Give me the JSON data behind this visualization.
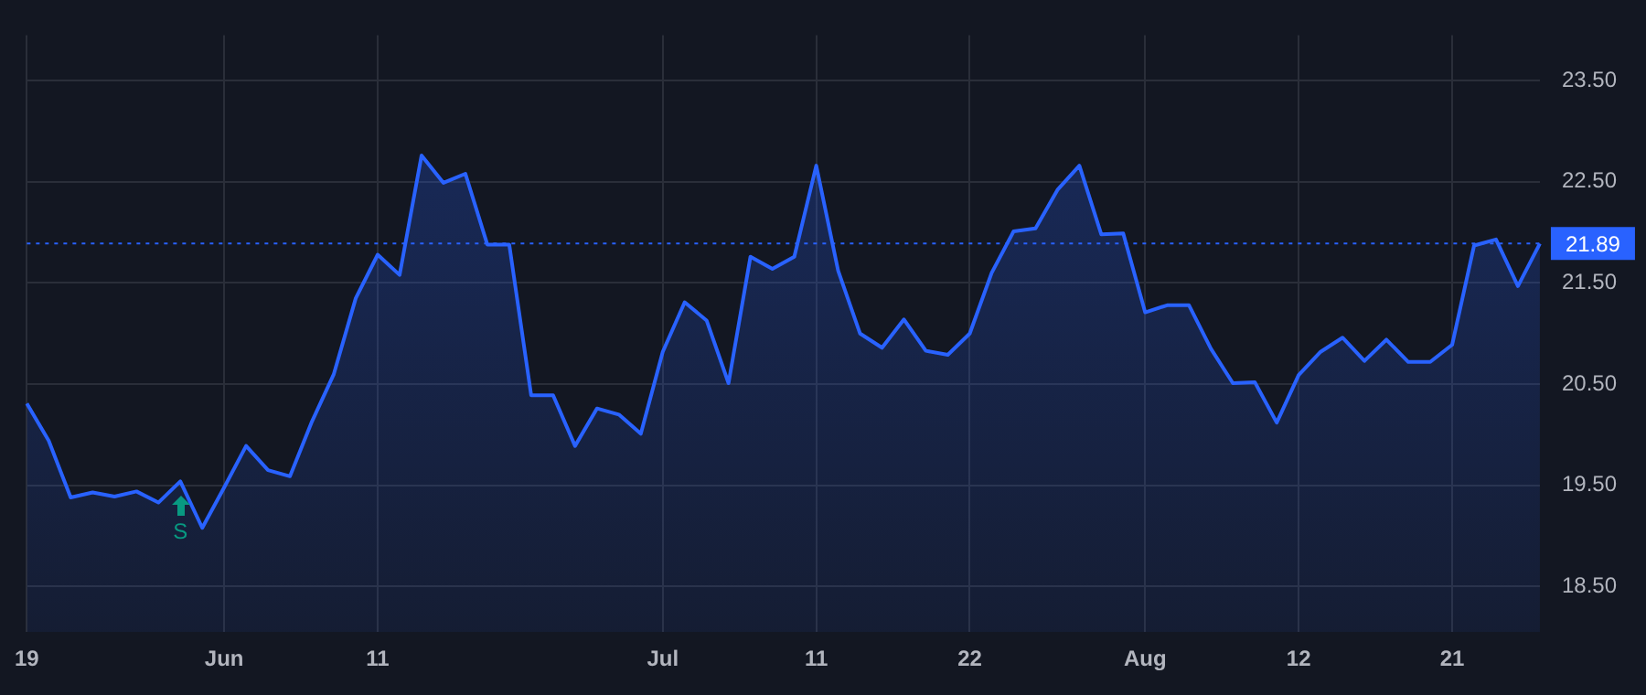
{
  "chart_data": {
    "type": "area",
    "categories": [
      "19",
      null,
      null,
      null,
      null,
      null,
      null,
      null,
      null,
      "Jun",
      null,
      null,
      null,
      null,
      null,
      null,
      "11",
      null,
      null,
      null,
      null,
      null,
      null,
      null,
      null,
      null,
      null,
      null,
      null,
      "Jul",
      null,
      null,
      null,
      null,
      null,
      null,
      "11",
      null,
      null,
      null,
      null,
      null,
      null,
      "22",
      null,
      null,
      null,
      null,
      null,
      null,
      null,
      "Aug",
      null,
      null,
      null,
      null,
      null,
      null,
      "12",
      null,
      null,
      null,
      null,
      null,
      null,
      "21",
      null,
      null,
      null,
      null
    ],
    "series": [
      {
        "color": "#2962ff",
        "values": [
          20.31,
          19.94,
          19.38,
          19.43,
          19.39,
          19.44,
          19.33,
          19.54,
          19.08,
          19.48,
          19.89,
          19.65,
          19.59,
          20.13,
          20.6,
          21.35,
          21.78,
          21.58,
          22.76,
          22.49,
          22.58,
          21.88,
          21.88,
          20.39,
          20.39,
          19.89,
          20.26,
          20.2,
          20.01,
          20.82,
          21.31,
          21.13,
          20.51,
          21.76,
          21.64,
          21.76,
          22.66,
          21.62,
          21.0,
          20.86,
          21.14,
          20.83,
          20.79,
          21.0,
          21.6,
          22.01,
          22.04,
          22.42,
          22.66,
          21.98,
          21.99,
          21.21,
          21.28,
          21.28,
          20.85,
          20.51,
          20.52,
          20.12,
          20.59,
          20.82,
          20.96,
          20.73,
          20.94,
          20.72,
          20.72,
          20.89,
          21.87,
          21.93,
          21.47,
          21.89
        ]
      }
    ],
    "ylim": [
      18.05,
      23.95
    ],
    "yticks": [
      {
        "value": 18.5,
        "label": "18.50"
      },
      {
        "value": 19.5,
        "label": "19.50"
      },
      {
        "value": 20.5,
        "label": "20.50"
      },
      {
        "value": 21.5,
        "label": "21.50"
      },
      {
        "value": 22.5,
        "label": "22.50"
      },
      {
        "value": 23.5,
        "label": "23.50"
      }
    ],
    "ref_lines": [
      {
        "axis": "y",
        "value": 21.89,
        "label": "21.89",
        "color": "#2962ff",
        "line_style": "dotted"
      }
    ],
    "annotations": [
      {
        "text": "S",
        "y": 19.54
      }
    ],
    "grid": true,
    "legend": false,
    "marker": "none",
    "line_style": "solid"
  }
}
